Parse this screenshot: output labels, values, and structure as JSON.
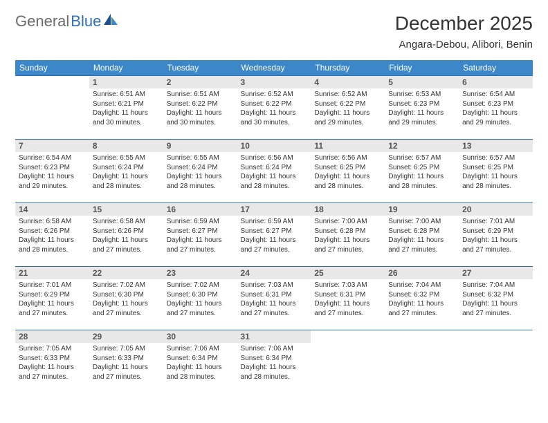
{
  "brand": {
    "word1": "General",
    "word2": "Blue"
  },
  "header": {
    "title": "December 2025",
    "location": "Angara-Debou, Alibori, Benin"
  },
  "colors": {
    "header_row_bg": "#3b87c8",
    "header_row_text": "#ffffff",
    "daynum_bg": "#e8e8e8",
    "row_border": "#2c6fbb",
    "brand_gray": "#6b6b6b",
    "brand_blue": "#2c6fbb"
  },
  "weekdays": [
    "Sunday",
    "Monday",
    "Tuesday",
    "Wednesday",
    "Thursday",
    "Friday",
    "Saturday"
  ],
  "weeks": [
    [
      {
        "empty": true
      },
      {
        "num": "1",
        "sunrise": "Sunrise: 6:51 AM",
        "sunset": "Sunset: 6:21 PM",
        "daylight": "Daylight: 11 hours and 30 minutes."
      },
      {
        "num": "2",
        "sunrise": "Sunrise: 6:51 AM",
        "sunset": "Sunset: 6:22 PM",
        "daylight": "Daylight: 11 hours and 30 minutes."
      },
      {
        "num": "3",
        "sunrise": "Sunrise: 6:52 AM",
        "sunset": "Sunset: 6:22 PM",
        "daylight": "Daylight: 11 hours and 30 minutes."
      },
      {
        "num": "4",
        "sunrise": "Sunrise: 6:52 AM",
        "sunset": "Sunset: 6:22 PM",
        "daylight": "Daylight: 11 hours and 29 minutes."
      },
      {
        "num": "5",
        "sunrise": "Sunrise: 6:53 AM",
        "sunset": "Sunset: 6:23 PM",
        "daylight": "Daylight: 11 hours and 29 minutes."
      },
      {
        "num": "6",
        "sunrise": "Sunrise: 6:54 AM",
        "sunset": "Sunset: 6:23 PM",
        "daylight": "Daylight: 11 hours and 29 minutes."
      }
    ],
    [
      {
        "num": "7",
        "sunrise": "Sunrise: 6:54 AM",
        "sunset": "Sunset: 6:23 PM",
        "daylight": "Daylight: 11 hours and 29 minutes."
      },
      {
        "num": "8",
        "sunrise": "Sunrise: 6:55 AM",
        "sunset": "Sunset: 6:24 PM",
        "daylight": "Daylight: 11 hours and 28 minutes."
      },
      {
        "num": "9",
        "sunrise": "Sunrise: 6:55 AM",
        "sunset": "Sunset: 6:24 PM",
        "daylight": "Daylight: 11 hours and 28 minutes."
      },
      {
        "num": "10",
        "sunrise": "Sunrise: 6:56 AM",
        "sunset": "Sunset: 6:24 PM",
        "daylight": "Daylight: 11 hours and 28 minutes."
      },
      {
        "num": "11",
        "sunrise": "Sunrise: 6:56 AM",
        "sunset": "Sunset: 6:25 PM",
        "daylight": "Daylight: 11 hours and 28 minutes."
      },
      {
        "num": "12",
        "sunrise": "Sunrise: 6:57 AM",
        "sunset": "Sunset: 6:25 PM",
        "daylight": "Daylight: 11 hours and 28 minutes."
      },
      {
        "num": "13",
        "sunrise": "Sunrise: 6:57 AM",
        "sunset": "Sunset: 6:25 PM",
        "daylight": "Daylight: 11 hours and 28 minutes."
      }
    ],
    [
      {
        "num": "14",
        "sunrise": "Sunrise: 6:58 AM",
        "sunset": "Sunset: 6:26 PM",
        "daylight": "Daylight: 11 hours and 28 minutes."
      },
      {
        "num": "15",
        "sunrise": "Sunrise: 6:58 AM",
        "sunset": "Sunset: 6:26 PM",
        "daylight": "Daylight: 11 hours and 27 minutes."
      },
      {
        "num": "16",
        "sunrise": "Sunrise: 6:59 AM",
        "sunset": "Sunset: 6:27 PM",
        "daylight": "Daylight: 11 hours and 27 minutes."
      },
      {
        "num": "17",
        "sunrise": "Sunrise: 6:59 AM",
        "sunset": "Sunset: 6:27 PM",
        "daylight": "Daylight: 11 hours and 27 minutes."
      },
      {
        "num": "18",
        "sunrise": "Sunrise: 7:00 AM",
        "sunset": "Sunset: 6:28 PM",
        "daylight": "Daylight: 11 hours and 27 minutes."
      },
      {
        "num": "19",
        "sunrise": "Sunrise: 7:00 AM",
        "sunset": "Sunset: 6:28 PM",
        "daylight": "Daylight: 11 hours and 27 minutes."
      },
      {
        "num": "20",
        "sunrise": "Sunrise: 7:01 AM",
        "sunset": "Sunset: 6:29 PM",
        "daylight": "Daylight: 11 hours and 27 minutes."
      }
    ],
    [
      {
        "num": "21",
        "sunrise": "Sunrise: 7:01 AM",
        "sunset": "Sunset: 6:29 PM",
        "daylight": "Daylight: 11 hours and 27 minutes."
      },
      {
        "num": "22",
        "sunrise": "Sunrise: 7:02 AM",
        "sunset": "Sunset: 6:30 PM",
        "daylight": "Daylight: 11 hours and 27 minutes."
      },
      {
        "num": "23",
        "sunrise": "Sunrise: 7:02 AM",
        "sunset": "Sunset: 6:30 PM",
        "daylight": "Daylight: 11 hours and 27 minutes."
      },
      {
        "num": "24",
        "sunrise": "Sunrise: 7:03 AM",
        "sunset": "Sunset: 6:31 PM",
        "daylight": "Daylight: 11 hours and 27 minutes."
      },
      {
        "num": "25",
        "sunrise": "Sunrise: 7:03 AM",
        "sunset": "Sunset: 6:31 PM",
        "daylight": "Daylight: 11 hours and 27 minutes."
      },
      {
        "num": "26",
        "sunrise": "Sunrise: 7:04 AM",
        "sunset": "Sunset: 6:32 PM",
        "daylight": "Daylight: 11 hours and 27 minutes."
      },
      {
        "num": "27",
        "sunrise": "Sunrise: 7:04 AM",
        "sunset": "Sunset: 6:32 PM",
        "daylight": "Daylight: 11 hours and 27 minutes."
      }
    ],
    [
      {
        "num": "28",
        "sunrise": "Sunrise: 7:05 AM",
        "sunset": "Sunset: 6:33 PM",
        "daylight": "Daylight: 11 hours and 27 minutes."
      },
      {
        "num": "29",
        "sunrise": "Sunrise: 7:05 AM",
        "sunset": "Sunset: 6:33 PM",
        "daylight": "Daylight: 11 hours and 27 minutes."
      },
      {
        "num": "30",
        "sunrise": "Sunrise: 7:06 AM",
        "sunset": "Sunset: 6:34 PM",
        "daylight": "Daylight: 11 hours and 28 minutes."
      },
      {
        "num": "31",
        "sunrise": "Sunrise: 7:06 AM",
        "sunset": "Sunset: 6:34 PM",
        "daylight": "Daylight: 11 hours and 28 minutes."
      },
      {
        "empty": true
      },
      {
        "empty": true
      },
      {
        "empty": true
      }
    ]
  ]
}
